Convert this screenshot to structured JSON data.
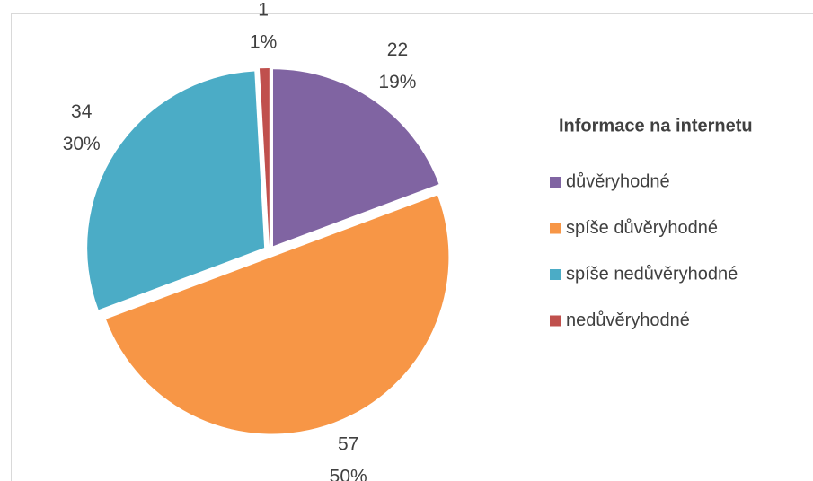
{
  "chart_data": {
    "type": "pie",
    "categories": [
      "důvěryhodné",
      "spíše důvěryhodné",
      "spíše nedůvěryhodné",
      "nedůvěryhodné"
    ],
    "values": [
      22,
      57,
      34,
      1
    ],
    "percent_labels": [
      "19%",
      "50%",
      "30%",
      "1%"
    ],
    "colors": [
      "#8064a2",
      "#f79646",
      "#4bacc6",
      "#c0504d"
    ],
    "legend": {
      "title": "Informace na internetu",
      "position": "right"
    }
  }
}
